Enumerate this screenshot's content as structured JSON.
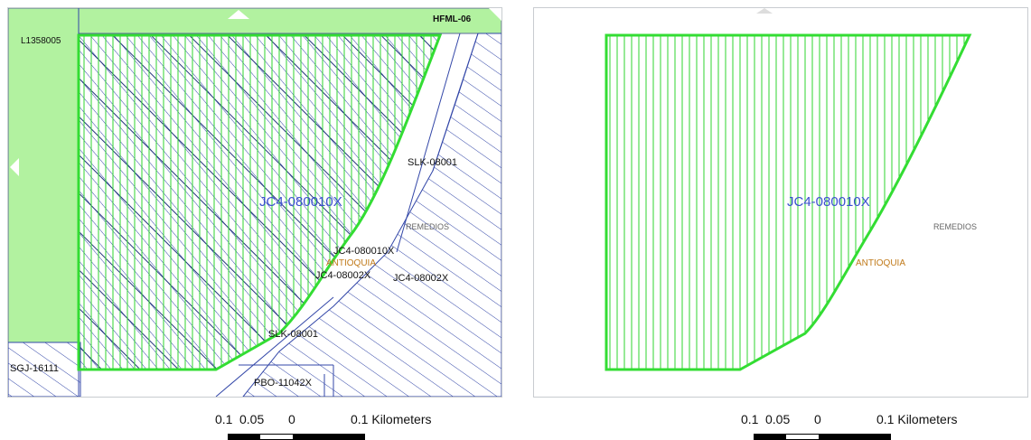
{
  "left_map": {
    "labels": {
      "hfml": "HFML-06",
      "l135": "L1358005",
      "jc4_big": "JC4-080010X",
      "slk_top": "SLK-08001",
      "remedios": "REMEDIOS",
      "jc4_small": "JC4-080010X",
      "antioquia": "ANTIOQUIA",
      "jc4_80002_a": "JC4-08002X",
      "jc4_80002_b": "JC4-08002X",
      "slk_bottom": "SLK-08001",
      "sgj": "SGJ-16111",
      "pbo": "PBO-11042X"
    }
  },
  "right_map": {
    "labels": {
      "jc4_big": "JC4-080010X",
      "remedios": "REMEDIOS",
      "antioquia": "ANTIOQUIA"
    }
  },
  "scale": {
    "ticks": [
      "0.1",
      "0.05",
      "0"
    ],
    "end_label": "0.1 Kilometers"
  },
  "colors": {
    "polygon_outline": "#33dd33",
    "polygon_hatch": "#2fd42f",
    "concession_fill": "#b2f2a0",
    "hatch_blue": "#3347a8",
    "label_blue": "#3b4fcf",
    "label_brown": "#c07a1a"
  }
}
